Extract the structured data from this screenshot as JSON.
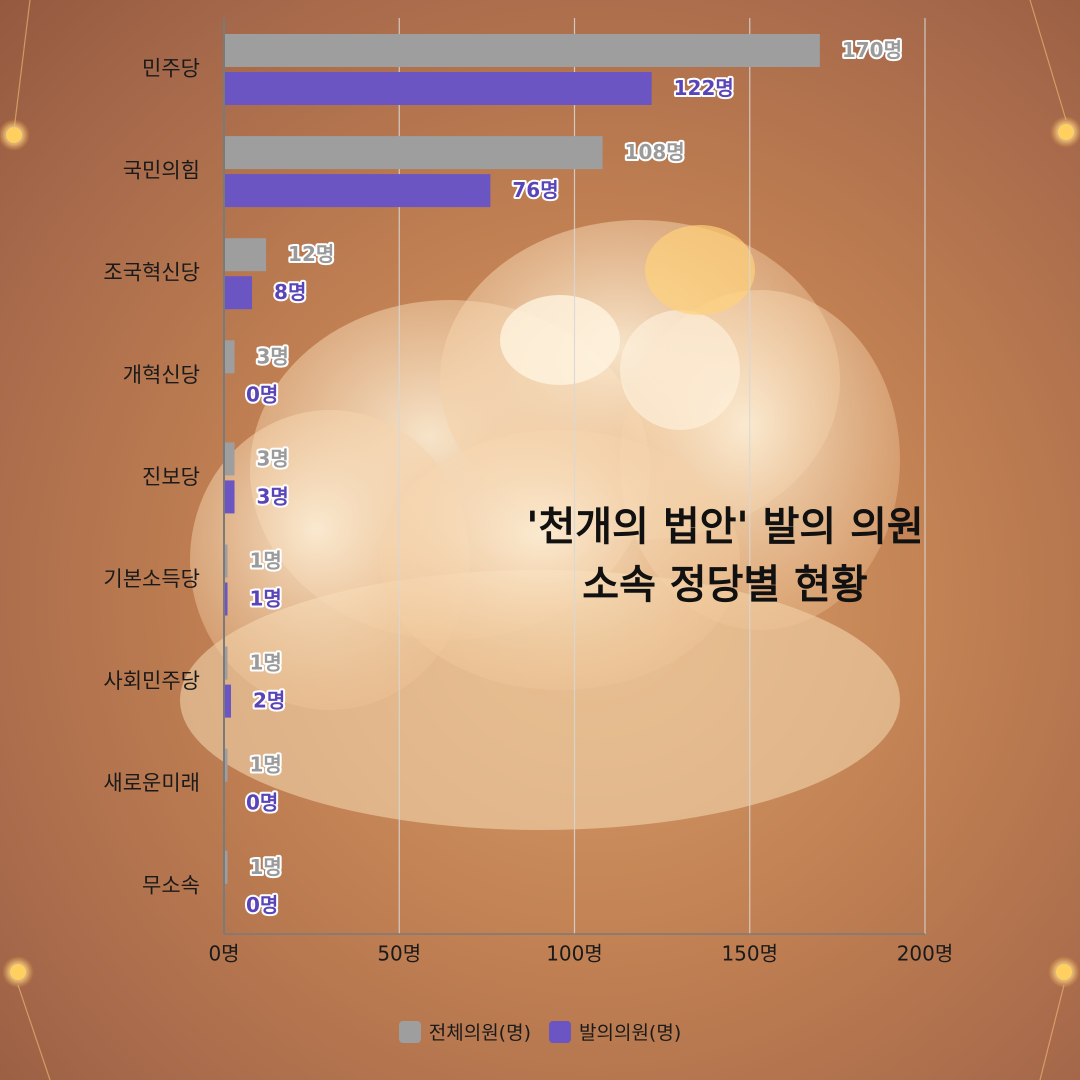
{
  "title_lines": [
    "'천개의 법안' 발의 의원",
    "소속 정당별 현황"
  ],
  "legend": [
    {
      "label": "전체의원(명)",
      "color": "#9e9e9e"
    },
    {
      "label": "발의의원(명)",
      "color": "#6a55c2"
    }
  ],
  "chart_data": {
    "type": "bar",
    "orientation": "horizontal",
    "categories": [
      "민주당",
      "국민의힘",
      "조국혁신당",
      "개혁신당",
      "진보당",
      "기본소득당",
      "사회민주당",
      "새로운미래",
      "무소속"
    ],
    "series": [
      {
        "name": "전체의원(명)",
        "values": [
          170,
          108,
          12,
          3,
          3,
          1,
          1,
          1,
          1
        ],
        "color": "#9e9e9e"
      },
      {
        "name": "발의의원(명)",
        "values": [
          122,
          76,
          8,
          0,
          3,
          1,
          2,
          0,
          0
        ],
        "color": "#6a55c2"
      }
    ],
    "data_labels": [
      [
        "170명",
        "108명",
        "12명",
        "3명",
        "3명",
        "1명",
        "1명",
        "1명",
        "1명"
      ],
      [
        "122명",
        "76명",
        "8명",
        "0명",
        "3명",
        "1명",
        "2명",
        "0명",
        "0명"
      ]
    ],
    "x_ticks": [
      "0명",
      "50명",
      "100명",
      "150명",
      "200명"
    ],
    "x_tick_values": [
      0,
      50,
      100,
      150,
      200
    ],
    "xlim": [
      0,
      200
    ],
    "grid": true,
    "legend_position": "bottom"
  }
}
